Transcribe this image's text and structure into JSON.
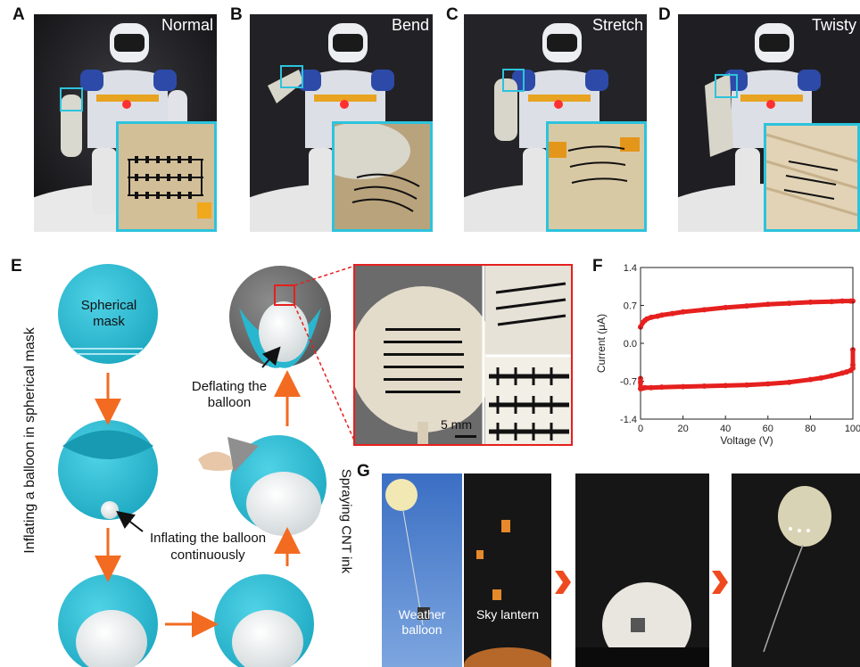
{
  "panel_a": {
    "letter": "A",
    "title": "Normal"
  },
  "panel_b": {
    "letter": "B",
    "title": "Bend"
  },
  "panel_c": {
    "letter": "C",
    "title": "Stretch"
  },
  "panel_d": {
    "letter": "D",
    "title": "Twisty"
  },
  "panel_e": {
    "letter": "E",
    "spherical_mask": "Spherical mask",
    "inflating_mask": "Inflating a balloon in spherical mask",
    "inflating_continuously": "Inflating the balloon continuously",
    "spraying": "Spraying CNT ink",
    "deflating": "Deflating the balloon",
    "scale_bar": "5 mm"
  },
  "panel_f": {
    "letter": "F"
  },
  "panel_g": {
    "letter": "G",
    "weather": "Weather balloon",
    "lantern": "Sky lantern"
  },
  "colors": {
    "cyan": "#2dc3dc",
    "red": "#e5201e",
    "arrow": "#f26b21"
  },
  "chart_data": {
    "type": "line",
    "xlabel": "Voltage (V)",
    "ylabel": "Current (μA)",
    "xlim": [
      0,
      100
    ],
    "ylim": [
      -1.4,
      1.4
    ],
    "xticks": [
      0,
      20,
      40,
      60,
      80,
      100
    ],
    "yticks": [
      -1.4,
      -0.7,
      0.0,
      0.7,
      1.4
    ],
    "series": [
      {
        "values_x": [
          0,
          1,
          2,
          3,
          5,
          8,
          10,
          15,
          20,
          30,
          40,
          50,
          60,
          70,
          80,
          90,
          95,
          99,
          100
        ],
        "values_y": [
          0.3,
          0.38,
          0.42,
          0.45,
          0.48,
          0.5,
          0.52,
          0.55,
          0.58,
          0.62,
          0.66,
          0.69,
          0.72,
          0.74,
          0.76,
          0.77,
          0.78,
          0.78,
          0.78
        ]
      },
      {
        "values_x": [
          100,
          100,
          100,
          99,
          97,
          95,
          90,
          85,
          80,
          70,
          60,
          50,
          40,
          30,
          20,
          10,
          5,
          2,
          1,
          0,
          0,
          0
        ],
        "values_y": [
          -0.12,
          -0.4,
          -0.46,
          -0.5,
          -0.53,
          -0.55,
          -0.6,
          -0.64,
          -0.67,
          -0.72,
          -0.75,
          -0.77,
          -0.78,
          -0.79,
          -0.8,
          -0.81,
          -0.82,
          -0.82,
          -0.83,
          -0.84,
          -0.72,
          -0.65
        ]
      }
    ]
  }
}
